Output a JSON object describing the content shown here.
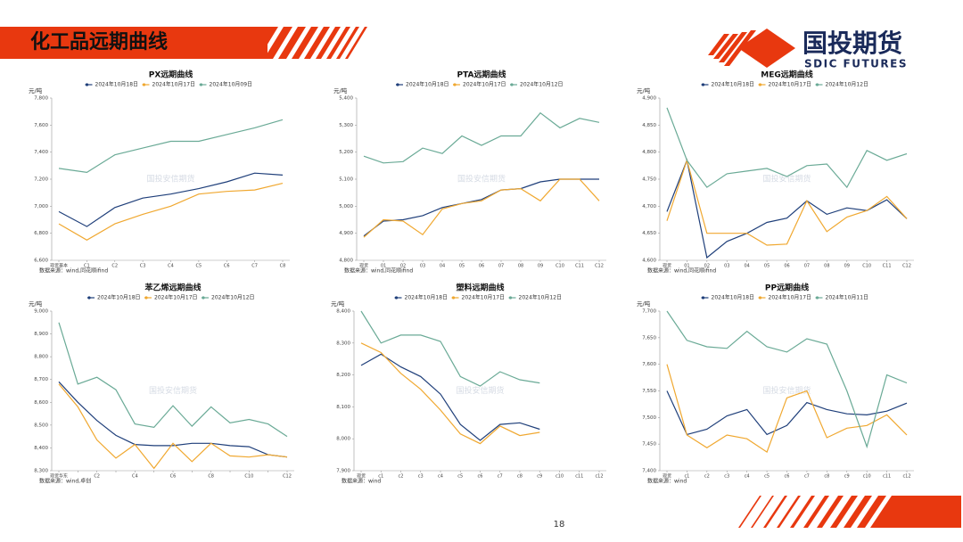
{
  "header": {
    "title": "化工品远期曲线",
    "logo": "国投期货",
    "logo_en": "SDIC FUTURES"
  },
  "page_number": "18",
  "chart_data": [
    {
      "type": "line",
      "title": "PX远期曲线",
      "y_label": "元/吨",
      "source": "数据来源：wind,同花顺ifind",
      "watermark": "国投安信期货",
      "categories": [
        "现货基本",
        "C1",
        "C2",
        "C3",
        "C4",
        "C5",
        "C6",
        "C7",
        "C8"
      ],
      "series": [
        {
          "name": "2024年10月18日",
          "color": "#1f3f7a",
          "values": [
            6960,
            6850,
            6990,
            7060,
            7090,
            7130,
            7180,
            7245,
            7230
          ]
        },
        {
          "name": "2024年10月17日",
          "color": "#f0a830",
          "values": [
            6870,
            6750,
            6870,
            6940,
            7000,
            7090,
            7110,
            7120,
            7170
          ]
        },
        {
          "name": "2024年10月09日",
          "color": "#6aaa96",
          "values": [
            7280,
            7250,
            7380,
            7430,
            7480,
            7480,
            7530,
            7580,
            7640
          ]
        }
      ],
      "ylim": [
        6600,
        7800
      ],
      "yticks": [
        {
          "value": 6600,
          "label": "6,600"
        },
        {
          "value": 6800,
          "label": "6,800"
        },
        {
          "value": 7000,
          "label": "7,000"
        },
        {
          "value": 7200,
          "label": "7,200"
        },
        {
          "value": 7400,
          "label": "7,400"
        },
        {
          "value": 7600,
          "label": "7,600"
        },
        {
          "value": 7800,
          "label": "7,800"
        }
      ]
    },
    {
      "type": "line",
      "title": "PTA远期曲线",
      "y_label": "元/吨",
      "source": "数据来源：wind,同花顺ifind",
      "watermark": "国投安信期货",
      "categories": [
        "现货",
        "01",
        "02",
        "03",
        "04",
        "05",
        "06",
        "07",
        "08",
        "09",
        "C10",
        "C11",
        "C12"
      ],
      "series": [
        {
          "name": "2024年10月18日",
          "color": "#1f3f7a",
          "values": [
            4890,
            4945,
            4950,
            4965,
            4995,
            5010,
            5025,
            5060,
            5065,
            5090,
            5100,
            5100,
            5100
          ]
        },
        {
          "name": "2024年10月17日",
          "color": "#f0a830",
          "values": [
            4885,
            4950,
            4945,
            4895,
            4990,
            5010,
            5020,
            5060,
            5065,
            5020,
            5100,
            5100,
            5020
          ]
        },
        {
          "name": "2024年10月12日",
          "color": "#6aaa96",
          "values": [
            5185,
            5160,
            5165,
            5215,
            5195,
            5260,
            5225,
            5260,
            5260,
            5345,
            5290,
            5325,
            5310
          ]
        }
      ],
      "ylim": [
        4800,
        5400
      ],
      "yticks": [
        {
          "value": 4800,
          "label": "4,800"
        },
        {
          "value": 4900,
          "label": "4,900"
        },
        {
          "value": 5000,
          "label": "5,000"
        },
        {
          "value": 5100,
          "label": "5,100"
        },
        {
          "value": 5200,
          "label": "5,200"
        },
        {
          "value": 5300,
          "label": "5,300"
        },
        {
          "value": 5400,
          "label": "5,400"
        }
      ]
    },
    {
      "type": "line",
      "title": "MEG远期曲线",
      "y_label": "元/吨",
      "source": "数据来源：wind,同花顺ifind",
      "watermark": "国投安信期货",
      "categories": [
        "现货",
        "01",
        "02",
        "03",
        "04",
        "05",
        "06",
        "07",
        "08",
        "09",
        "C10",
        "C11",
        "C12"
      ],
      "series": [
        {
          "name": "2024年10月18日",
          "color": "#1f3f7a",
          "values": [
            4690,
            4785,
            4605,
            4635,
            4650,
            4670,
            4678,
            4710,
            4685,
            4697,
            4692,
            4712,
            4677
          ]
        },
        {
          "name": "2024年10月17日",
          "color": "#f0a830",
          "values": [
            4673,
            4785,
            4650,
            4650,
            4650,
            4628,
            4630,
            4710,
            4653,
            4680,
            4692,
            4718,
            4677
          ]
        },
        {
          "name": "2024年10月12日",
          "color": "#6aaa96",
          "values": [
            4882,
            4785,
            4735,
            4760,
            4765,
            4770,
            4755,
            4775,
            4778,
            4735,
            4803,
            4785,
            4797
          ]
        }
      ],
      "ylim": [
        4600,
        4900
      ],
      "yticks": [
        {
          "value": 4600,
          "label": "4,600"
        },
        {
          "value": 4650,
          "label": "4,650"
        },
        {
          "value": 4700,
          "label": "4,700"
        },
        {
          "value": 4750,
          "label": "4,750"
        },
        {
          "value": 4800,
          "label": "4,800"
        },
        {
          "value": 4850,
          "label": "4,850"
        },
        {
          "value": 4900,
          "label": "4,900"
        }
      ]
    },
    {
      "type": "line",
      "title": "苯乙烯远期曲线",
      "y_label": "元/吨",
      "source": "数据来源：wind,卓创",
      "watermark": "国投安信期货",
      "categories": [
        "现货华东",
        null,
        "C2",
        null,
        "C4",
        null,
        "C6",
        null,
        "C8",
        null,
        "C10",
        null,
        "C12"
      ],
      "series": [
        {
          "name": "2024年10月18日",
          "color": "#1f3f7a",
          "values": [
            8690,
            8600,
            8520,
            8455,
            8415,
            8410,
            8410,
            8420,
            8420,
            8410,
            8405,
            8370,
            8360
          ]
        },
        {
          "name": "2024年10月17日",
          "color": "#f0a830",
          "values": [
            8680,
            8580,
            8435,
            8355,
            8415,
            8310,
            8420,
            8340,
            8420,
            8365,
            8360,
            8370,
            8360
          ]
        },
        {
          "name": "2024年10月12日",
          "color": "#6aaa96",
          "values": [
            8950,
            8680,
            8710,
            8655,
            8505,
            8490,
            8585,
            8495,
            8580,
            8510,
            8525,
            8505,
            8450
          ]
        }
      ],
      "ylim": [
        8300,
        9000
      ],
      "yticks": [
        {
          "value": 8300,
          "label": "8,300"
        },
        {
          "value": 8400,
          "label": "8,400"
        },
        {
          "value": 8500,
          "label": "8,500"
        },
        {
          "value": 8600,
          "label": "8,600"
        },
        {
          "value": 8700,
          "label": "8,700"
        },
        {
          "value": 8800,
          "label": "8,800"
        },
        {
          "value": 8900,
          "label": "8,900"
        },
        {
          "value": 9000,
          "label": "9,000"
        }
      ]
    },
    {
      "type": "line",
      "title": "塑料远期曲线",
      "y_label": "元/吨",
      "source": "数据来源：wind",
      "watermark": "国投安信期货",
      "categories": [
        "现货",
        "c1",
        "c2",
        "c3",
        "c4",
        "c5",
        "c6",
        "c7",
        "c8",
        "c9",
        "c10",
        "c11",
        "c12"
      ],
      "series": [
        {
          "name": "2024年10月18日",
          "color": "#1f3f7a",
          "values": [
            8230,
            8265,
            8225,
            8195,
            8140,
            8045,
            7995,
            8045,
            8050,
            8030,
            null,
            null,
            null
          ]
        },
        {
          "name": "2024年10月17日",
          "color": "#f0a830",
          "values": [
            8300,
            8270,
            8205,
            8155,
            8090,
            8015,
            7985,
            8040,
            8010,
            8020,
            null,
            null,
            null
          ]
        },
        {
          "name": "2024年10月12日",
          "color": "#6aaa96",
          "values": [
            8400,
            8300,
            8325,
            8325,
            8305,
            8195,
            8165,
            8210,
            8185,
            8175,
            null,
            null,
            null
          ]
        }
      ],
      "ylim": [
        7900,
        8400
      ],
      "yticks": [
        {
          "value": 7900,
          "label": "7,900"
        },
        {
          "value": 8000,
          "label": "8,000"
        },
        {
          "value": 8100,
          "label": "8,100"
        },
        {
          "value": 8200,
          "label": "8,200"
        },
        {
          "value": 8300,
          "label": "8,300"
        },
        {
          "value": 8400,
          "label": "8,400"
        }
      ]
    },
    {
      "type": "line",
      "title": "PP远期曲线",
      "y_label": "元/吨",
      "source": "数据来源：wind",
      "watermark": "国投安信期货",
      "categories": [
        "现货",
        "c1",
        "c2",
        "c3",
        "c4",
        "c5",
        "c6",
        "c7",
        "c8",
        "c9",
        "c10",
        "c11",
        "c12"
      ],
      "series": [
        {
          "name": "2024年10月18日",
          "color": "#1f3f7a",
          "values": [
            7550,
            7468,
            7478,
            7503,
            7515,
            7468,
            7485,
            7528,
            7515,
            7507,
            7505,
            7512,
            7527
          ]
        },
        {
          "name": "2024年10月17日",
          "color": "#f0a830",
          "values": [
            7600,
            7467,
            7443,
            7467,
            7460,
            7435,
            7537,
            7550,
            7462,
            7480,
            7485,
            7505,
            7467
          ]
        },
        {
          "name": "2024年10月11日",
          "color": "#6aaa96",
          "values": [
            7700,
            7645,
            7633,
            7630,
            7662,
            7633,
            7623,
            7648,
            7638,
            7550,
            7445,
            7580,
            7565
          ]
        }
      ],
      "ylim": [
        7400,
        7700
      ],
      "yticks": [
        {
          "value": 7400,
          "label": "7,400"
        },
        {
          "value": 7450,
          "label": "7,450"
        },
        {
          "value": 7500,
          "label": "7,500"
        },
        {
          "value": 7550,
          "label": "7,550"
        },
        {
          "value": 7600,
          "label": "7,600"
        },
        {
          "value": 7650,
          "label": "7,650"
        },
        {
          "value": 7700,
          "label": "7,700"
        }
      ]
    }
  ]
}
